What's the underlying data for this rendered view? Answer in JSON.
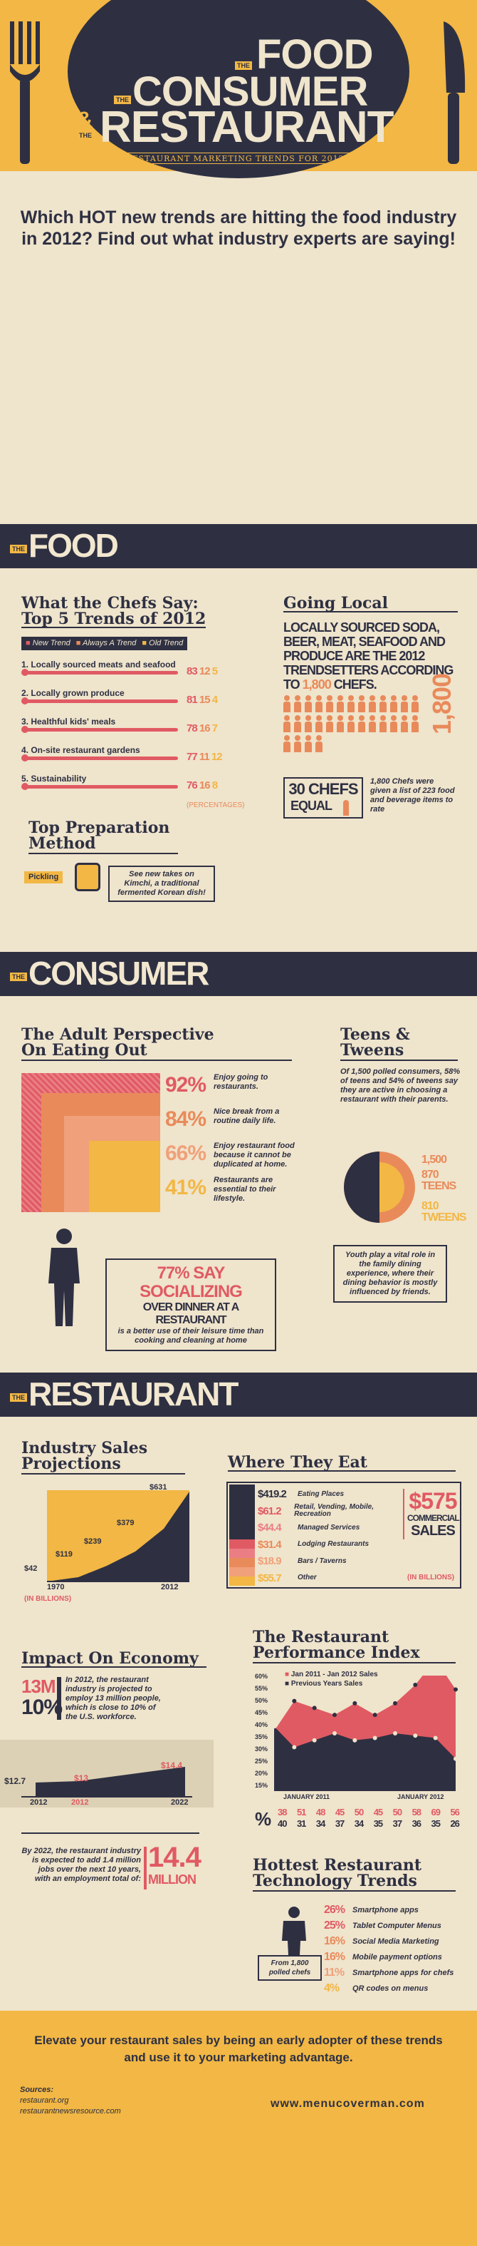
{
  "header": {
    "the1": "THE",
    "food": "FOOD",
    "the2": "THE",
    "consumer": "CONSUMER",
    "amp": "&",
    "the3": "THE",
    "restaurant": "RESTAURANT",
    "subtitle": "RESTAURANT MARKETING TRENDS FOR 2012"
  },
  "intro": "Which HOT new trends are hitting the food industry in 2012? Find out what industry experts are saying!",
  "food": {
    "the": "THE",
    "title": "FOOD",
    "chefs": {
      "heading1": "What the Chefs Say:",
      "heading2": "Top 5 Trends of 2012",
      "legend": [
        "New Trend",
        "Always A Trend",
        "Old Trend"
      ],
      "trends": [
        {
          "label": "1. Locally sourced meats and seafood",
          "v": [
            "83",
            "12",
            "5"
          ]
        },
        {
          "label": "2. Locally grown produce",
          "v": [
            "81",
            "15",
            "4"
          ]
        },
        {
          "label": "3. Healthful kids' meals",
          "v": [
            "78",
            "16",
            "7"
          ]
        },
        {
          "label": "4. On-site restaurant gardens",
          "v": [
            "77",
            "11",
            "12"
          ]
        },
        {
          "label": "5. Sustainability",
          "v": [
            "76",
            "16",
            "8"
          ]
        }
      ],
      "percentages": "(PERCENTAGES)"
    },
    "local": {
      "heading": "Going Local",
      "text1": "LOCALLY SOURCED SODA, BEER, MEAT, SEAFOOD AND PRODUCE ARE THE 2012 TRENDSETTERS ACCORDING TO ",
      "chefs_count": "1,800",
      "text2": " CHEFS.",
      "big": "1,800",
      "equal_num": "30 CHEFS",
      "equal_word": "EQUAL",
      "note": "1,800 Chefs were given a list of 223 food and beverage items to rate"
    },
    "prep": {
      "heading1": "Top Preparation",
      "heading2": "Method",
      "tag": "Pickling",
      "note": "See new takes on Kimchi, a traditional fermented Korean dish!"
    }
  },
  "consumer": {
    "the": "THE",
    "title": "CONSUMER",
    "adult": {
      "heading1": "The Adult Perspective",
      "heading2": "On Eating Out",
      "stats": [
        {
          "pct": "92%",
          "text": "Enjoy going to restaurants."
        },
        {
          "pct": "84%",
          "text": "Nice break from a routine daily life."
        },
        {
          "pct": "66%",
          "text": "Enjoy restaurant food because it cannot be duplicated at home."
        },
        {
          "pct": "41%",
          "text": "Restaurants are essential to their lifestyle."
        }
      ],
      "social_big": "77% SAY SOCIALIZING",
      "social_mid": "OVER DINNER AT A RESTAURANT",
      "social_small": "is a better use of their leisure time than cooking and cleaning at home"
    },
    "teens": {
      "heading1": "Teens &",
      "heading2": "Tweens",
      "text": "Of 1,500 polled consumers, 58% of teens and 54% of tweens say they are active in choosing a restaurant with their parents.",
      "n1": "1,500",
      "n2": "870",
      "n2l": "TEENS",
      "n3": "810",
      "n3l": "TWEENS",
      "note": "Youth play a vital role in the family dining experience, where their dining behavior is mostly influenced by friends."
    }
  },
  "restaurant": {
    "the": "THE",
    "title": "RESTAURANT",
    "sales": {
      "heading1": "Industry Sales",
      "heading2": "Projections",
      "labels": [
        "$42",
        "$119",
        "$239",
        "$379",
        "$631"
      ],
      "years": [
        "1970",
        "2012"
      ],
      "unit": "(IN BILLIONS)"
    },
    "where": {
      "heading": "Where They Eat",
      "rows": [
        {
          "v": "$419.2",
          "l": "Eating Places"
        },
        {
          "v": "$61.2",
          "l": "Retail, Vending, Mobile, Recreation"
        },
        {
          "v": "$44.4",
          "l": "Managed Services"
        },
        {
          "v": "$31.4",
          "l": "Lodging Restaurants"
        },
        {
          "v": "$18.9",
          "l": "Bars / Taverns"
        },
        {
          "v": "$55.7",
          "l": "Other"
        }
      ],
      "total": "$575",
      "total_l1": "COMMERCIAL",
      "total_l2": "SALES",
      "unit": "(IN BILLIONS)"
    },
    "economy": {
      "heading": "Impact On Economy",
      "big1": "13M",
      "big2": "10%",
      "text": "In 2012, the restaurant industry is projected to employ 13 million people, which is close to 10% of the U.S. workforce.",
      "chart_labels": [
        "$12.7",
        "$13",
        "$14.4"
      ],
      "years": [
        "2012",
        "2012",
        "2022"
      ],
      "text2": "By 2022, the restaurant industry is expected to add 1.4 million jobs over the next 10 years, with an employment total of:",
      "big3": "14.4",
      "big3l": "MILLION"
    },
    "performance": {
      "heading1": "The Restaurant",
      "heading2": "Performance Index",
      "legend": [
        "Jan 2011 - Jan 2012 Sales",
        "Previous Years Sales"
      ],
      "yticks": [
        "60%",
        "55%",
        "50%",
        "45%",
        "40%",
        "35%",
        "30%",
        "25%",
        "20%",
        "15%"
      ],
      "xlabels": [
        "JANUARY 2011",
        "JANUARY 2012"
      ],
      "row1": [
        "38",
        "51",
        "48",
        "45",
        "50",
        "45",
        "50",
        "58",
        "69",
        "56"
      ],
      "row2": [
        "40",
        "31",
        "34",
        "37",
        "34",
        "35",
        "37",
        "36",
        "35",
        "26"
      ]
    },
    "tech": {
      "heading1": "Hottest Restaurant",
      "heading2": "Technology Trends",
      "items": [
        {
          "p": "26%",
          "l": "Smartphone apps"
        },
        {
          "p": "25%",
          "l": "Tablet Computer Menus"
        },
        {
          "p": "16%",
          "l": "Social Media Marketing"
        },
        {
          "p": "16%",
          "l": "Mobile payment options"
        },
        {
          "p": "11%",
          "l": "Smartphone apps for chefs"
        },
        {
          "p": "4%",
          "l": "QR codes on menus"
        }
      ],
      "note": "From 1,800 polled chefs"
    }
  },
  "footer": {
    "cta": "Elevate your restaurant sales by being an early adopter of these trends and use it to your marketing advantage.",
    "sources": "Sources:",
    "s1": "restaurant.org",
    "s2": "restaurantnewsresource.com",
    "site": "www.menucoverman.com"
  },
  "colors": {
    "navy": "#2e3042",
    "red": "#e05a63",
    "orange": "#e98a5a",
    "yellow": "#f2b744",
    "cream": "#efe4cc"
  }
}
